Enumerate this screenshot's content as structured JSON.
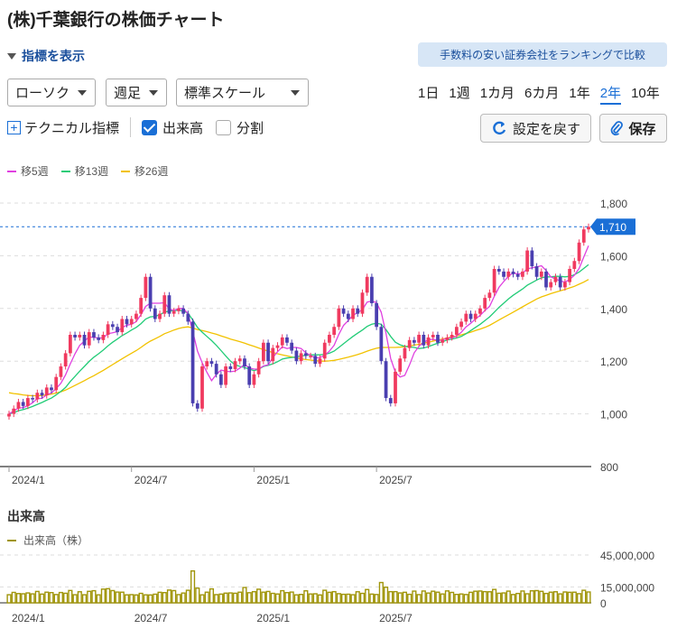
{
  "page": {
    "title": "(株)千葉銀行の株価チャート",
    "toggle_label": "指標を表示",
    "ranking_button": "手数料の安い証券会社をランキングで比較",
    "chart_type_select": "ローソク",
    "interval_select": "週足",
    "scale_select": "標準スケール",
    "periods": [
      "1日",
      "1週",
      "1カ月",
      "6カ月",
      "1年",
      "2年",
      "10年"
    ],
    "active_period": "2年",
    "technical_label": "テクニカル指標",
    "volume_checkbox": "出来高",
    "split_checkbox": "分割",
    "reset_button": "設定を戻す",
    "save_button": "保存",
    "ma_legend": [
      {
        "label": "移5週",
        "color": "#e040e0"
      },
      {
        "label": "移13週",
        "color": "#22cc77"
      },
      {
        "label": "移26週",
        "color": "#f2c200"
      }
    ],
    "volume_title": "出来高",
    "volume_legend": "出来高（株）",
    "current_price_label": "1,710"
  },
  "chart_data": {
    "type": "candlestick",
    "up_color": "#f03a5f",
    "down_color": "#4a3fb0",
    "price_axis": {
      "ticks": [
        800,
        1000,
        1200,
        1400,
        1600,
        1800
      ],
      "tick_labels": [
        "800",
        "1,000",
        "1,200",
        "1,400",
        "1,600",
        "1,800"
      ],
      "ylim": [
        800,
        1800
      ]
    },
    "x_tick_labels": [
      "2024/1",
      "2024/7",
      "2025/1",
      "2025/7"
    ],
    "current_price": 1710,
    "close": [
      1000,
      1020,
      1045,
      1030,
      1060,
      1055,
      1080,
      1070,
      1100,
      1090,
      1140,
      1180,
      1230,
      1300,
      1290,
      1300,
      1260,
      1310,
      1290,
      1280,
      1300,
      1340,
      1330,
      1310,
      1360,
      1340,
      1360,
      1380,
      1440,
      1520,
      1400,
      1360,
      1380,
      1450,
      1380,
      1390,
      1400,
      1380,
      1350,
      1040,
      1020,
      1180,
      1200,
      1190,
      1150,
      1110,
      1180,
      1170,
      1200,
      1210,
      1180,
      1110,
      1150,
      1200,
      1270,
      1200,
      1250,
      1260,
      1290,
      1270,
      1240,
      1200,
      1230,
      1220,
      1220,
      1190,
      1210,
      1270,
      1300,
      1330,
      1400,
      1380,
      1360,
      1400,
      1380,
      1460,
      1520,
      1420,
      1330,
      1200,
      1060,
      1040,
      1160,
      1210,
      1250,
      1280,
      1270,
      1300,
      1260,
      1290,
      1300,
      1270,
      1280,
      1290,
      1300,
      1330,
      1350,
      1380,
      1360,
      1380,
      1400,
      1440,
      1460,
      1550,
      1540,
      1520,
      1540,
      1530,
      1520,
      1540,
      1620,
      1560,
      1520,
      1540,
      1480,
      1500,
      1520,
      1480,
      1500,
      1550,
      1580,
      1650,
      1700,
      1710
    ],
    "ma5": [
      1000,
      1011,
      1022,
      1024,
      1031,
      1042,
      1058,
      1059,
      1073,
      1079,
      1096,
      1116,
      1148,
      1190,
      1228,
      1260,
      1276,
      1292,
      1290,
      1288,
      1288,
      1304,
      1308,
      1312,
      1328,
      1336,
      1340,
      1350,
      1376,
      1408,
      1420,
      1420,
      1420,
      1422,
      1398,
      1392,
      1400,
      1400,
      1380,
      1312,
      1238,
      1194,
      1158,
      1126,
      1150,
      1166,
      1162,
      1160,
      1162,
      1174,
      1188,
      1174,
      1170,
      1170,
      1182,
      1186,
      1214,
      1236,
      1254,
      1248,
      1252,
      1252,
      1248,
      1232,
      1222,
      1212,
      1214,
      1222,
      1238,
      1260,
      1302,
      1336,
      1354,
      1374,
      1384,
      1396,
      1424,
      1428,
      1422,
      1386,
      1306,
      1210,
      1158,
      1140,
      1146,
      1186,
      1232,
      1256,
      1272,
      1280,
      1284,
      1278,
      1280,
      1288,
      1288,
      1296,
      1310,
      1330,
      1344,
      1360,
      1374,
      1392,
      1408,
      1446,
      1480,
      1502,
      1522,
      1536,
      1530,
      1534,
      1550,
      1554,
      1558,
      1562,
      1544,
      1520,
      1512,
      1504,
      1500,
      1510,
      1526,
      1552,
      1596,
      1638
    ],
    "ma13": [
      1000,
      1004,
      1012,
      1016,
      1022,
      1028,
      1036,
      1043,
      1052,
      1060,
      1072,
      1085,
      1100,
      1123,
      1142,
      1162,
      1180,
      1199,
      1215,
      1228,
      1242,
      1258,
      1272,
      1284,
      1297,
      1307,
      1318,
      1328,
      1342,
      1360,
      1368,
      1370,
      1376,
      1386,
      1390,
      1392,
      1393,
      1390,
      1382,
      1356,
      1328,
      1310,
      1294,
      1278,
      1260,
      1240,
      1220,
      1200,
      1186,
      1180,
      1176,
      1170,
      1164,
      1170,
      1180,
      1184,
      1190,
      1198,
      1208,
      1212,
      1214,
      1216,
      1220,
      1222,
      1224,
      1224,
      1224,
      1226,
      1230,
      1238,
      1252,
      1266,
      1280,
      1294,
      1306,
      1318,
      1332,
      1340,
      1344,
      1340,
      1320,
      1294,
      1272,
      1262,
      1256,
      1254,
      1252,
      1248,
      1250,
      1255,
      1262,
      1268,
      1274,
      1280,
      1284,
      1288,
      1294,
      1304,
      1316,
      1328,
      1340,
      1354,
      1368,
      1386,
      1404,
      1420,
      1436,
      1450,
      1462,
      1474,
      1488,
      1498,
      1508,
      1516,
      1520,
      1520,
      1522,
      1522,
      1520,
      1522,
      1528,
      1538,
      1552,
      1566
    ],
    "ma26": [
      1080,
      1077,
      1075,
      1072,
      1070,
      1069,
      1069,
      1070,
      1072,
      1075,
      1079,
      1084,
      1090,
      1099,
      1108,
      1117,
      1126,
      1136,
      1145,
      1155,
      1165,
      1176,
      1187,
      1198,
      1209,
      1220,
      1230,
      1240,
      1252,
      1265,
      1276,
      1285,
      1294,
      1304,
      1311,
      1318,
      1324,
      1328,
      1330,
      1326,
      1320,
      1316,
      1312,
      1307,
      1302,
      1296,
      1290,
      1284,
      1279,
      1274,
      1268,
      1262,
      1256,
      1250,
      1244,
      1238,
      1233,
      1228,
      1224,
      1220,
      1216,
      1212,
      1209,
      1206,
      1204,
      1202,
      1200,
      1200,
      1201,
      1203,
      1207,
      1211,
      1215,
      1220,
      1225,
      1231,
      1238,
      1244,
      1249,
      1252,
      1252,
      1252,
      1252,
      1253,
      1255,
      1258,
      1261,
      1264,
      1268,
      1272,
      1276,
      1280,
      1284,
      1288,
      1292,
      1296,
      1300,
      1305,
      1310,
      1316,
      1322,
      1328,
      1336,
      1346,
      1356,
      1366,
      1376,
      1386,
      1396,
      1406,
      1416,
      1426,
      1436,
      1444,
      1450,
      1456,
      1462,
      1467,
      1472,
      1478,
      1484,
      1492,
      1500,
      1510
    ],
    "volume_axis": {
      "ticks": [
        0,
        15000000,
        45000000
      ],
      "tick_labels": [
        "0",
        "15,000,000",
        "45,000,000"
      ]
    },
    "volume": [
      7600000,
      9800000,
      8700000,
      8500000,
      9300000,
      8400000,
      10700000,
      8200000,
      10000000,
      9600000,
      7800000,
      9700000,
      9000000,
      11600000,
      7600000,
      10400000,
      7600000,
      10800000,
      11400000,
      7500000,
      12900000,
      13300000,
      11500000,
      10100000,
      10000000,
      7500000,
      7700000,
      7400000,
      8900000,
      7500000,
      7400000,
      8100000,
      9900000,
      9600000,
      12000000,
      11500000,
      7700000,
      9200000,
      11800000,
      30000000,
      13800000,
      7500000,
      10000000,
      13100000,
      7700000,
      8200000,
      9100000,
      9300000,
      9000000,
      10000000,
      14400000,
      9500000,
      10500000,
      12800000,
      10000000,
      10700000,
      8900000,
      8300000,
      11400000,
      9600000,
      10100000,
      7500000,
      7900000,
      11300000,
      8300000,
      8500000,
      7400000,
      11800000,
      9900000,
      10500000,
      8600000,
      8000000,
      8100000,
      7600000,
      10400000,
      8900000,
      12500000,
      8200000,
      7800000,
      19100000,
      14700000,
      10500000,
      10500000,
      9300000,
      9900000,
      8000000,
      11000000,
      7700000,
      11100000,
      9200000,
      10900000,
      10000000,
      8300000,
      11200000,
      9800000,
      7900000,
      8300000,
      7800000,
      9900000,
      10900000,
      11100000,
      10500000,
      10400000,
      12600000,
      9000000,
      9300000,
      11000000,
      7800000,
      8800000,
      11100000,
      8500000,
      11300000,
      11500000,
      10800000,
      8800000,
      10000000,
      10400000,
      8400000,
      10200000,
      9900000,
      10000000,
      8600000,
      11800000,
      10200000
    ]
  }
}
